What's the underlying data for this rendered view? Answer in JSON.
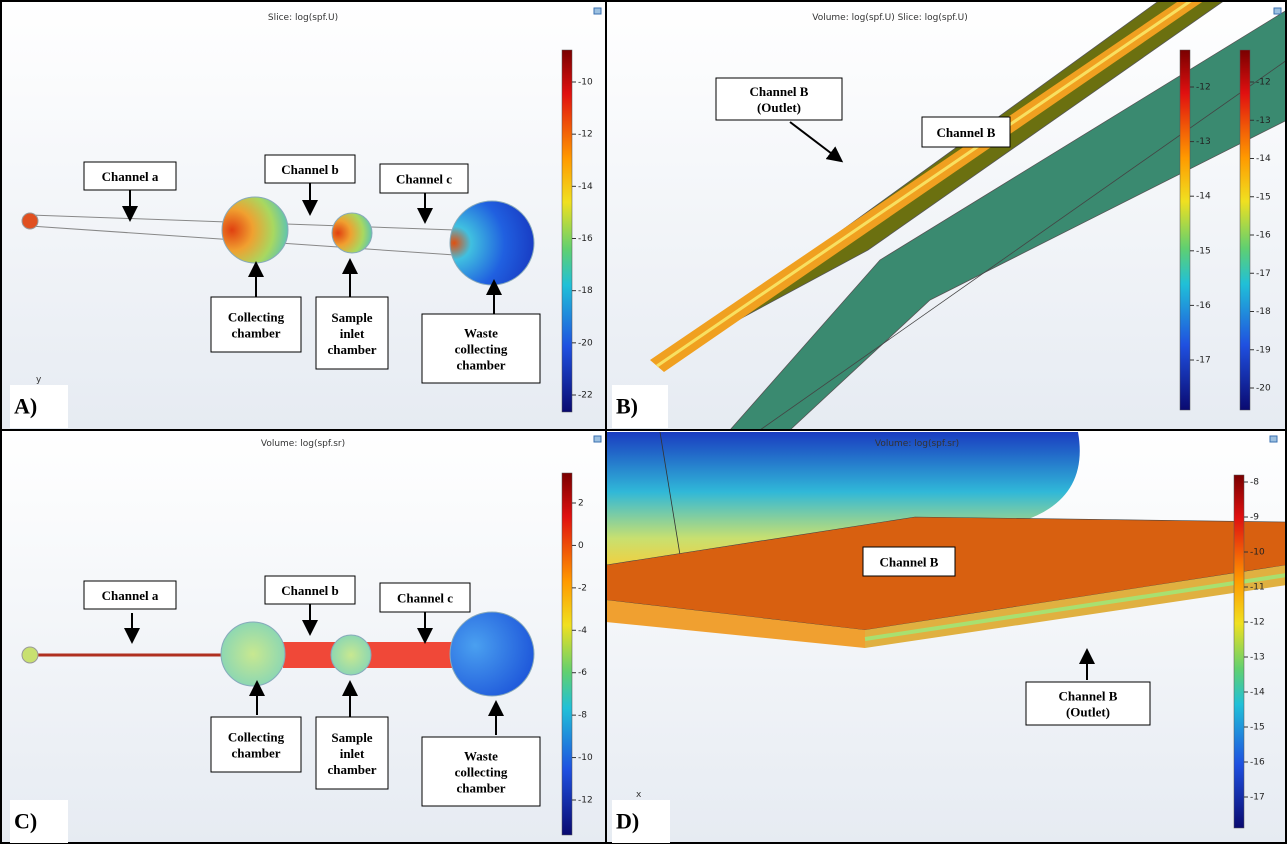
{
  "panels": [
    {
      "label": "A)",
      "title": "Slice: log(spf.U)",
      "axis_label": "y",
      "colorbars": [
        {
          "ticks": [
            -10,
            -12,
            -14,
            -16,
            -18,
            -20,
            -22
          ]
        }
      ],
      "annotations": [
        {
          "lines": [
            "Channel a"
          ]
        },
        {
          "lines": [
            "Channel b"
          ]
        },
        {
          "lines": [
            "Channel c"
          ]
        },
        {
          "lines": [
            "Collecting",
            "chamber"
          ]
        },
        {
          "lines": [
            "Sample",
            "inlet",
            "chamber"
          ]
        },
        {
          "lines": [
            "Waste",
            "collecting",
            "chamber"
          ]
        }
      ]
    },
    {
      "label": "B)",
      "title": "Volume: log(spf.U)  Slice: log(spf.U)",
      "colorbars": [
        {
          "ticks": [
            -12,
            -13,
            -14,
            -15,
            -16,
            -17
          ]
        },
        {
          "ticks": [
            -12,
            -13,
            -14,
            -15,
            -16,
            -17,
            -18,
            -19,
            -20
          ]
        }
      ],
      "annotations": [
        {
          "lines": [
            "Channel B",
            "(Outlet)"
          ]
        },
        {
          "lines": [
            "Channel B"
          ]
        }
      ]
    },
    {
      "label": "C)",
      "title": "Volume: log(spf.sr)",
      "colorbars": [
        {
          "ticks": [
            2,
            0,
            -2,
            -4,
            -6,
            -8,
            -10,
            -12
          ]
        }
      ],
      "annotations": [
        {
          "lines": [
            "Channel a"
          ]
        },
        {
          "lines": [
            "Channel b"
          ]
        },
        {
          "lines": [
            "Channel c"
          ]
        },
        {
          "lines": [
            "Collecting",
            "chamber"
          ]
        },
        {
          "lines": [
            "Sample",
            "inlet",
            "chamber"
          ]
        },
        {
          "lines": [
            "Waste",
            "collecting",
            "chamber"
          ]
        }
      ]
    },
    {
      "label": "D)",
      "title": "Volume: log(spf.sr)",
      "axis_label": "x",
      "colorbars": [
        {
          "ticks": [
            -8,
            -9,
            -10,
            -11,
            -12,
            -13,
            -14,
            -15,
            -16,
            -17
          ]
        }
      ],
      "annotations": [
        {
          "lines": [
            "Channel B"
          ]
        },
        {
          "lines": [
            "Channel B",
            "(Outlet)"
          ]
        }
      ]
    }
  ]
}
